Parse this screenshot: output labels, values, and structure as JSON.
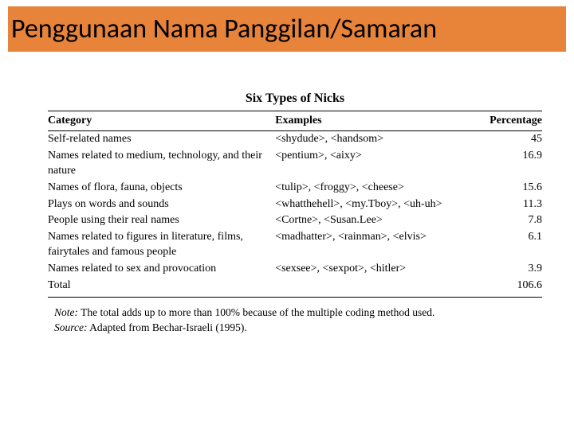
{
  "header": {
    "title": "Penggunaan Nama Panggilan/Samaran",
    "bg_color": "#e8833a",
    "title_color": "#000000",
    "title_fontsize": 34
  },
  "table": {
    "title": "Six Types of Nicks",
    "columns": [
      "Category",
      "Examples",
      "Percentage"
    ],
    "rows": [
      {
        "category": "Self-related names",
        "examples": "<shydude>, <handsom>",
        "percentage": "45"
      },
      {
        "category": "Names related to medium, technology, and their nature",
        "examples": "<pentium>, <aixy>",
        "percentage": "16.9"
      },
      {
        "category": "Names of flora, fauna, objects",
        "examples": "<tulip>, <froggy>, <cheese>",
        "percentage": "15.6"
      },
      {
        "category": "Plays on words and sounds",
        "examples": "<whatthehell>, <my.Tboy>, <uh-uh>",
        "percentage": "11.3"
      },
      {
        "category": "People using their real names",
        "examples": "<Cortne>, <Susan.Lee>",
        "percentage": "7.8"
      },
      {
        "category": "Names related to figures in literature, films, fairytales and famous people",
        "examples": "<madhatter>, <rainman>, <elvis>",
        "percentage": "6.1"
      },
      {
        "category": "Names related to sex and provocation",
        "examples": "<sexsee>, <sexpot>, <hitler>",
        "percentage": "3.9"
      },
      {
        "category": "Total",
        "examples": "",
        "percentage": "106.6"
      }
    ]
  },
  "note": {
    "note_label": "Note:",
    "note_text": "The total adds up to more than 100% because of the multiple coding method used.",
    "source_label": "Source:",
    "source_text": "Adapted from Bechar-Israeli (1995)."
  }
}
